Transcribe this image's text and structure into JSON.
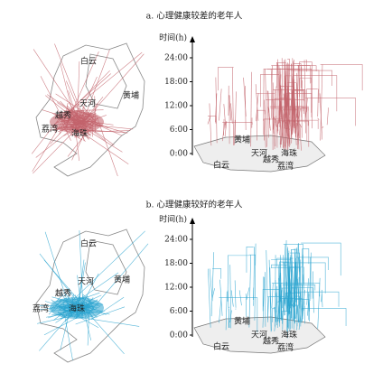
{
  "panels": [
    {
      "title": "a. 心理健康较差的老年人",
      "map_labels": [
        "白云",
        "黄埔",
        "天河",
        "越秀",
        "荔湾",
        "海珠"
      ],
      "axis_label": "时间(h)",
      "time_ticks": [
        "24:00",
        "18:00",
        "12:00",
        "6:00",
        "0:00"
      ],
      "cube_labels": [
        "黄埔",
        "天河",
        "海珠",
        "越秀",
        "荔湾",
        "白云"
      ]
    },
    {
      "title": "b. 心理健康较好的老年人",
      "map_labels": [
        "白云",
        "天河",
        "黄埔",
        "越秀",
        "荔湾",
        "海珠"
      ],
      "axis_label": "时间(h)",
      "time_ticks": [
        "24:00",
        "18:00",
        "12:00",
        "6:00",
        "0:00"
      ],
      "cube_labels": [
        "黄埔",
        "天河",
        "海珠",
        "越秀",
        "荔湾",
        "白云"
      ]
    }
  ]
}
